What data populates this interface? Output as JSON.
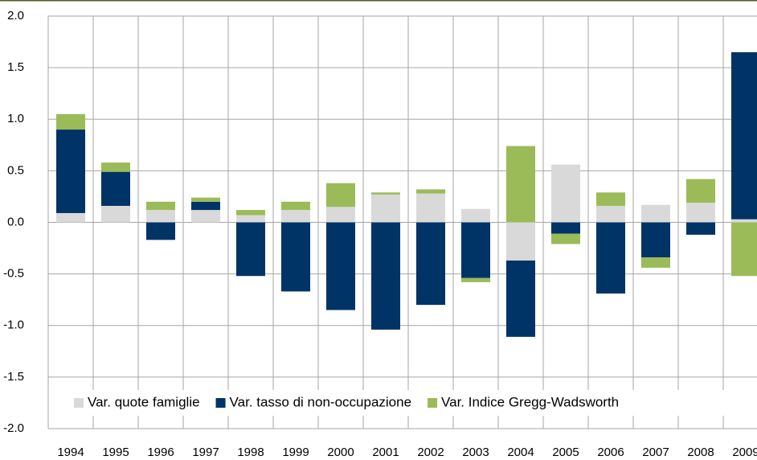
{
  "chart_data": {
    "type": "stacked-bar",
    "categories": [
      "1994",
      "1995",
      "1996",
      "1997",
      "1998",
      "1999",
      "2000",
      "2001",
      "2002",
      "2003",
      "2004",
      "2005",
      "2006",
      "2007",
      "2008",
      "2009"
    ],
    "series": [
      {
        "name": "Var. quote famiglie",
        "color": "#d9d9d9",
        "values": [
          0.09,
          0.16,
          0.12,
          0.12,
          0.07,
          0.12,
          0.15,
          0.27,
          0.28,
          0.13,
          -0.37,
          0.56,
          0.16,
          0.17,
          0.19,
          0.03
        ]
      },
      {
        "name": "Var. tasso di non-occupazione",
        "color": "#003366",
        "values": [
          0.81,
          0.33,
          -0.17,
          0.08,
          -0.52,
          -0.67,
          -0.85,
          -1.04,
          -0.8,
          -0.54,
          -0.74,
          -0.11,
          -0.69,
          -0.34,
          -0.12,
          1.62
        ]
      },
      {
        "name": "Var. Indice Gregg-Wadsworth",
        "color": "#9bbb59",
        "values": [
          0.15,
          0.09,
          0.08,
          0.04,
          0.05,
          0.08,
          0.23,
          0.02,
          0.04,
          -0.04,
          0.74,
          -0.1,
          0.13,
          -0.1,
          0.23,
          -0.52
        ]
      }
    ],
    "ylim": [
      -2.0,
      2.0
    ],
    "yticks": [
      {
        "value": 2.0,
        "label": "2.0"
      },
      {
        "value": 1.5,
        "label": "1.5"
      },
      {
        "value": 1.0,
        "label": "1.0"
      },
      {
        "value": 0.5,
        "label": "0.5"
      },
      {
        "value": 0.0,
        "label": "0.0"
      },
      {
        "value": -0.5,
        "label": "-0.5"
      },
      {
        "value": -1.0,
        "label": "-1.0"
      },
      {
        "value": -1.5,
        "label": "-1.5"
      },
      {
        "value": -2.0,
        "label": "-2.0"
      }
    ],
    "grid": true,
    "legend": "bottom"
  }
}
